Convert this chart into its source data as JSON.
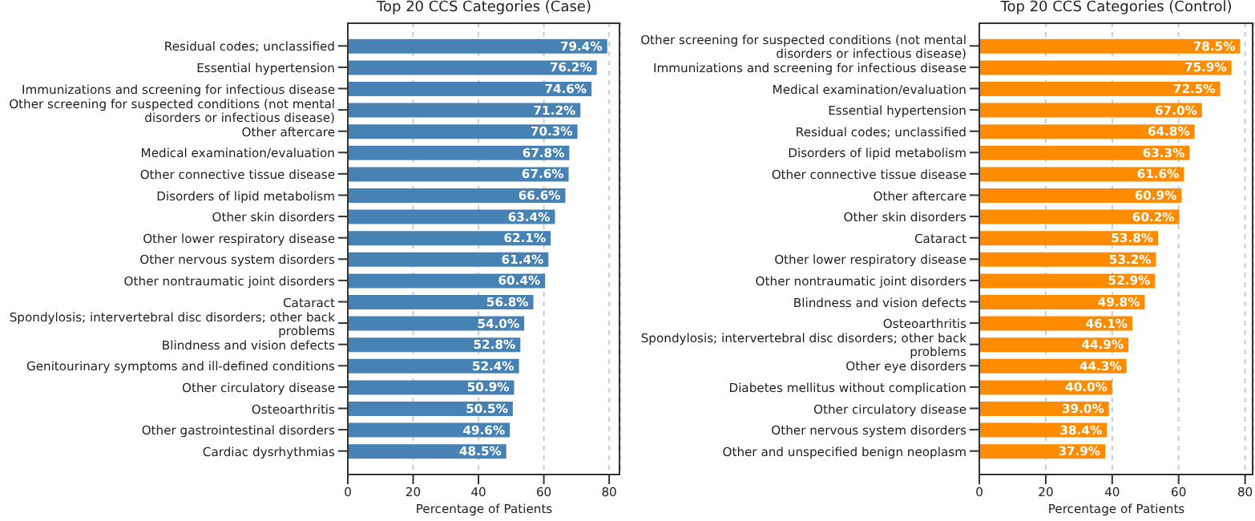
{
  "chart_data": [
    {
      "type": "bar",
      "orientation": "horizontal",
      "title": "Top 20 CCS Categories (Case)",
      "xlabel": "Percentage of Patients",
      "categories": [
        "Residual codes; unclassified",
        "Essential hypertension",
        "Immunizations and screening for infectious disease",
        "Other screening for suspected conditions (not mental disorders or infectious disease)",
        "Other aftercare",
        "Medical examination/evaluation",
        "Other connective tissue disease",
        "Disorders of lipid metabolism",
        "Other skin disorders",
        "Other lower respiratory disease",
        "Other nervous system disorders",
        "Other nontraumatic joint disorders",
        "Cataract",
        "Spondylosis; intervertebral disc disorders; other back problems",
        "Blindness and vision defects",
        "Genitourinary symptoms and ill-defined conditions",
        "Other circulatory disease",
        "Osteoarthritis",
        "Other gastrointestinal disorders",
        "Cardiac dysrhythmias"
      ],
      "values": [
        79.4,
        76.2,
        74.6,
        71.2,
        70.3,
        67.8,
        67.6,
        66.6,
        63.4,
        62.1,
        61.4,
        60.4,
        56.8,
        54.0,
        52.8,
        52.4,
        50.9,
        50.5,
        49.6,
        48.5
      ],
      "value_labels": [
        "79.4%",
        "76.2%",
        "74.6%",
        "71.2%",
        "70.3%",
        "67.8%",
        "67.6%",
        "66.6%",
        "63.4%",
        "62.1%",
        "61.4%",
        "60.4%",
        "56.8%",
        "54.0%",
        "52.8%",
        "52.4%",
        "50.9%",
        "50.5%",
        "49.6%",
        "48.5%"
      ],
      "color": "#4682b4",
      "xlim": [
        0,
        83.4
      ],
      "xticks": [
        0,
        20,
        40,
        60,
        80
      ],
      "grid": "x"
    },
    {
      "type": "bar",
      "orientation": "horizontal",
      "title": "Top 20 CCS Categories (Control)",
      "xlabel": "Percentage of Patients",
      "categories": [
        "Other screening for suspected conditions (not mental disorders or infectious disease)",
        "Immunizations and screening for infectious disease",
        "Medical examination/evaluation",
        "Essential hypertension",
        "Residual codes; unclassified",
        "Disorders of lipid metabolism",
        "Other connective tissue disease",
        "Other aftercare",
        "Other skin disorders",
        "Cataract",
        "Other lower respiratory disease",
        "Other nontraumatic joint disorders",
        "Blindness and vision defects",
        "Osteoarthritis",
        "Spondylosis; intervertebral disc disorders; other back problems",
        "Other eye disorders",
        "Diabetes mellitus without complication",
        "Other circulatory disease",
        "Other nervous system disorders",
        "Other and unspecified benign neoplasm"
      ],
      "values": [
        78.5,
        75.9,
        72.5,
        67.0,
        64.8,
        63.3,
        61.6,
        60.9,
        60.2,
        53.8,
        53.2,
        52.9,
        49.8,
        46.1,
        44.9,
        44.3,
        40.0,
        39.0,
        38.4,
        37.9
      ],
      "value_labels": [
        "78.5%",
        "75.9%",
        "72.5%",
        "67.0%",
        "64.8%",
        "63.3%",
        "61.6%",
        "60.9%",
        "60.2%",
        "53.8%",
        "53.2%",
        "52.9%",
        "49.8%",
        "46.1%",
        "44.9%",
        "44.3%",
        "40.0%",
        "39.0%",
        "38.4%",
        "37.9%"
      ],
      "color": "#ff8c00",
      "xlim": [
        0,
        82.5
      ],
      "xticks": [
        0,
        20,
        40,
        60,
        80
      ],
      "grid": "x"
    }
  ]
}
